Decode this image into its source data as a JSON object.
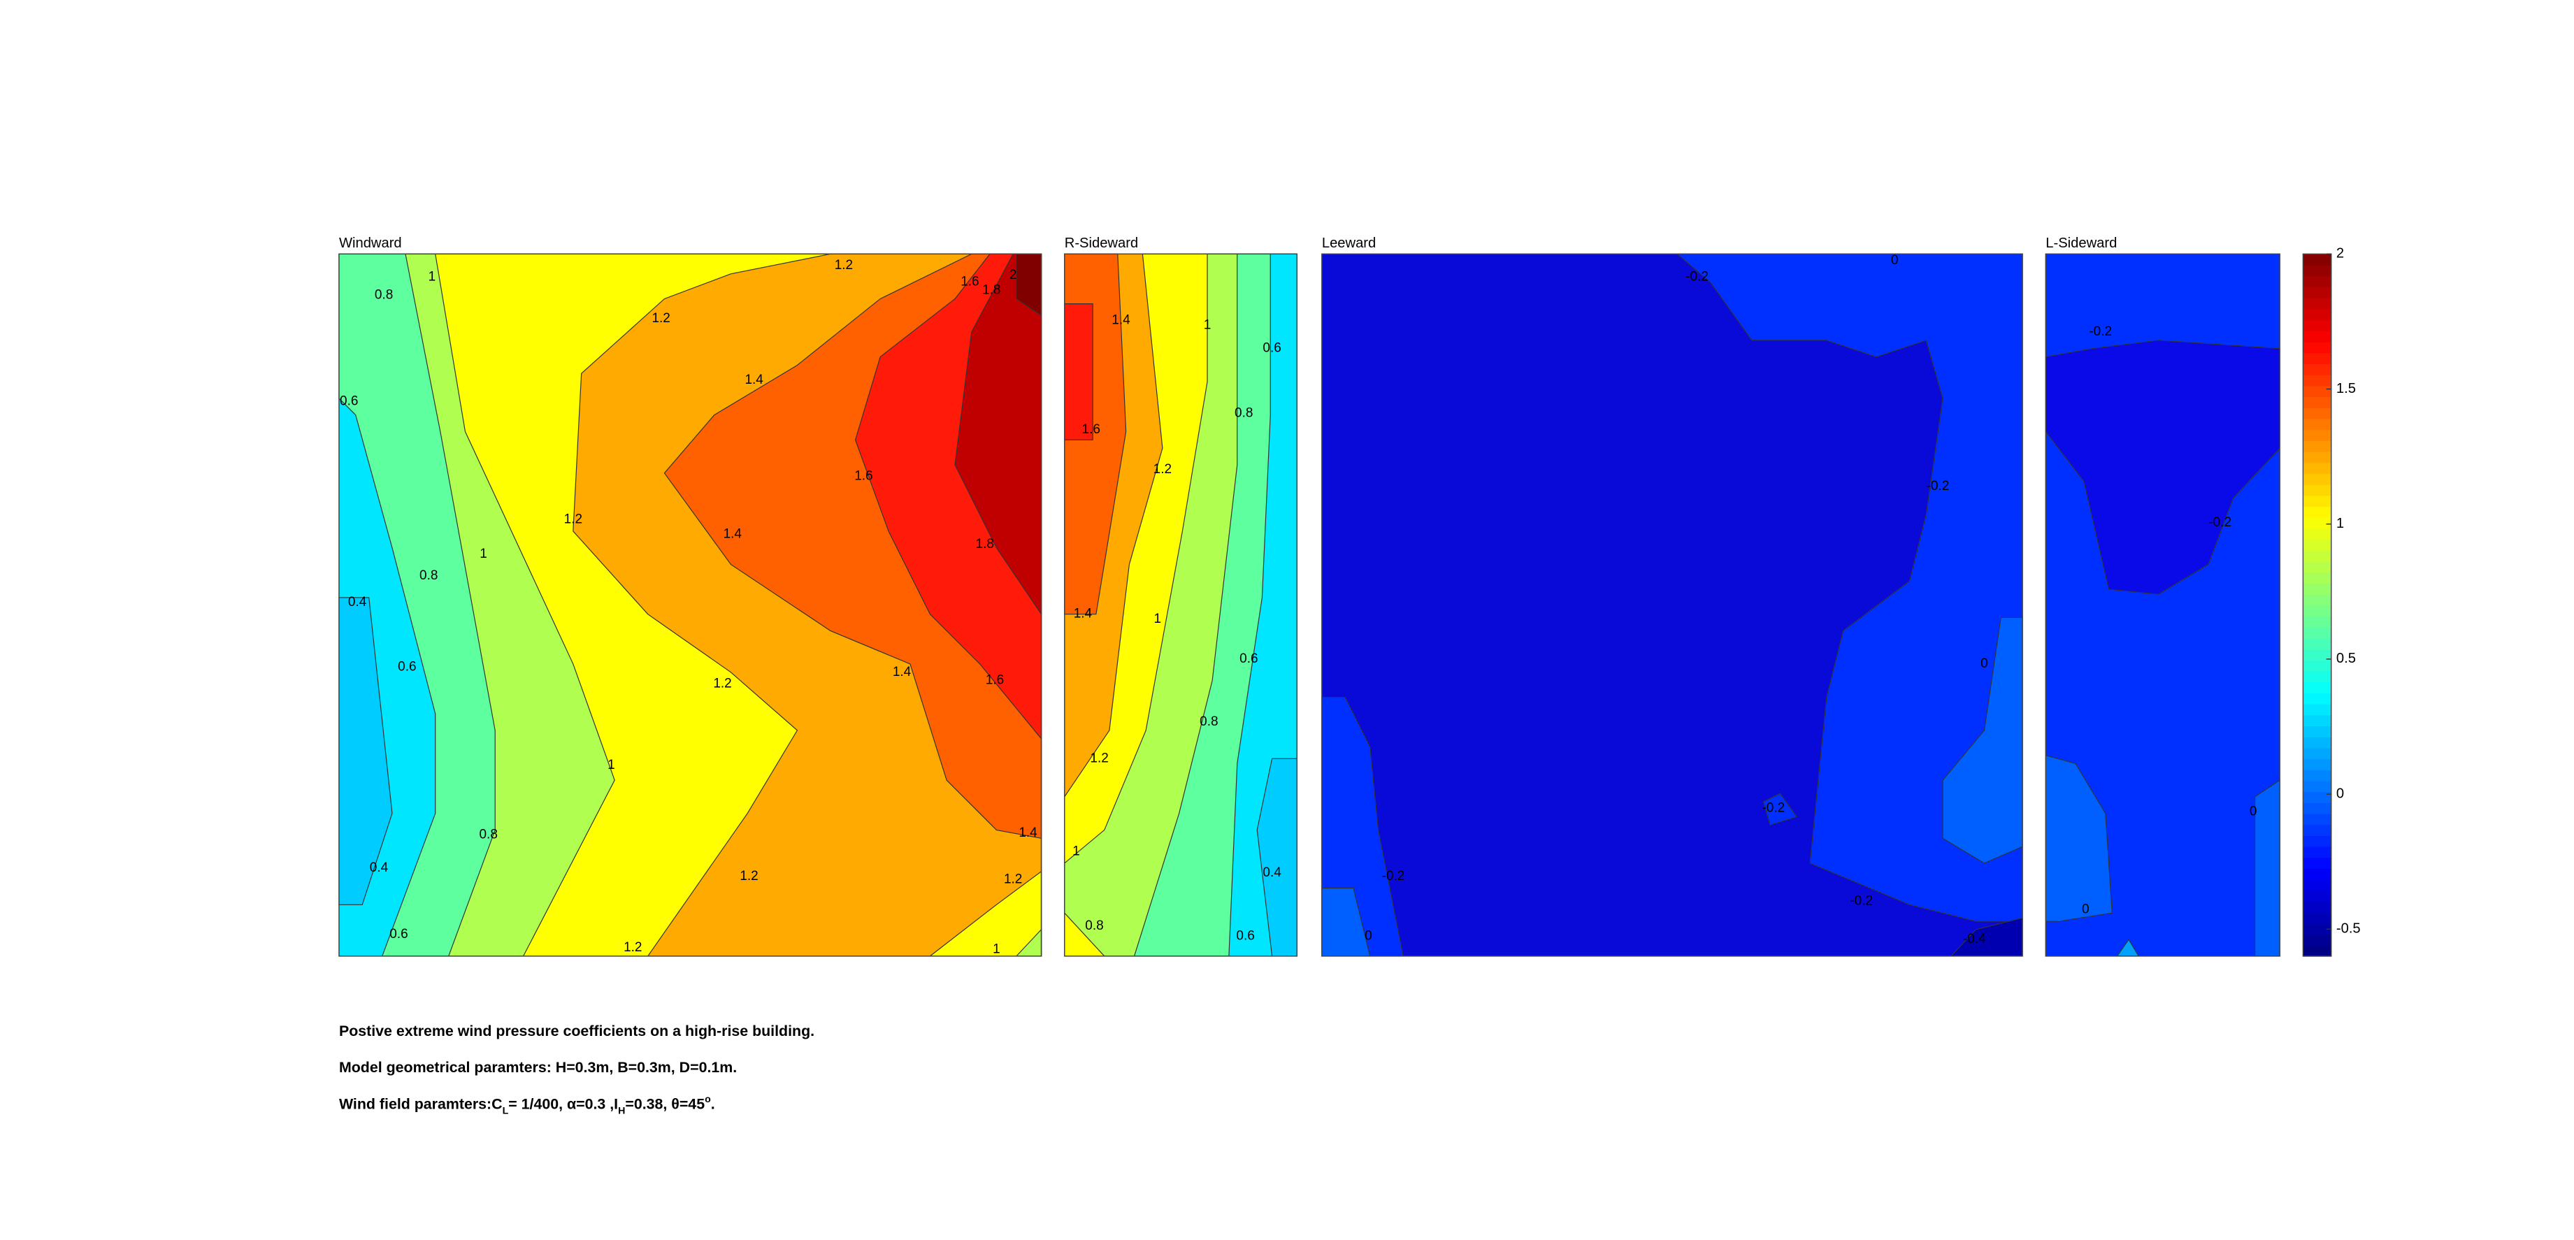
{
  "chart_data": [
    {
      "type": "contour",
      "title": "Windward",
      "contour_labels": [
        0.8,
        1,
        1.2,
        1.2,
        0.6,
        1.4,
        1.6,
        1.2,
        1.4,
        1,
        1.8,
        0.8,
        0.4,
        0.6,
        1.4,
        1.2,
        1.6,
        1,
        0.8,
        1.4,
        0.4,
        1.2,
        1.2,
        0.6,
        1.2,
        1,
        1.6,
        1.8,
        2
      ]
    },
    {
      "type": "contour",
      "title": "R-Sideward",
      "contour_labels": [
        1.4,
        1,
        0.6,
        0.8,
        1.6,
        1.2,
        1.4,
        1,
        0.6,
        0.8,
        1.2,
        1,
        0.4,
        0.8,
        0.6
      ]
    },
    {
      "type": "contour",
      "title": "Leeward",
      "contour_labels": [
        -0.2,
        0,
        -0.2,
        0,
        -0.2,
        -0.2,
        -0.2,
        0,
        -0.4
      ]
    },
    {
      "type": "contour",
      "title": "L-Sideward",
      "contour_labels": [
        -0.2,
        -0.2,
        0,
        0
      ]
    },
    {
      "type": "colorbar",
      "ylim": [
        -0.6,
        2
      ],
      "yticks": [
        -0.5,
        0,
        0.5,
        1,
        1.5,
        2
      ]
    }
  ],
  "caption": {
    "line1": "Postive extreme  wind pressure coefficients on a high-rise building.",
    "line2": "Model geometrical paramters: H=0.3m, B=0.3m, D=0.1m.",
    "line3": [
      "Wind field paramters:C",
      "L",
      "= 1/400, α=0.3 ,I",
      "H",
      "=0.38, θ=45",
      "o",
      "."
    ]
  }
}
